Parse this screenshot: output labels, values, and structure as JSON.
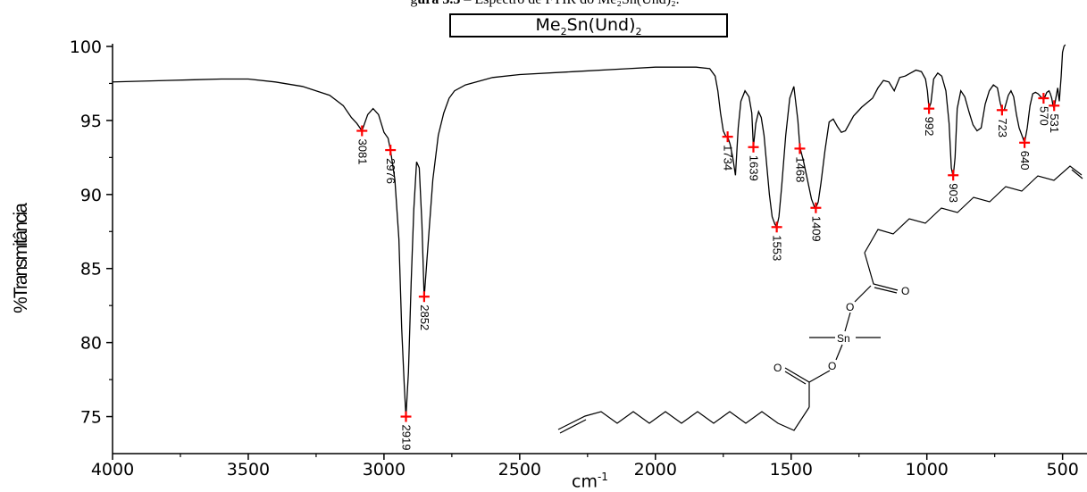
{
  "caption": {
    "prefix": "g",
    "bold": "ura 3.3",
    "rest": " – Espectro de FTIR do Me₂Sn(Und)₂."
  },
  "chart_data": {
    "type": "line",
    "title": {
      "base": "Me",
      "sub1": "2",
      "mid": "Sn(Und)",
      "sub2": "2"
    },
    "xlabel": {
      "base": "cm",
      "sup": "-1"
    },
    "ylabel": "%Transmitância",
    "xlim": [
      4000,
      410
    ],
    "ylim": [
      72.5,
      100
    ],
    "xticks": [
      "4000",
      "3500",
      "3000",
      "2500",
      "2000",
      "1500",
      "1000",
      "500"
    ],
    "xtick_values": [
      4000,
      3500,
      3000,
      2500,
      2000,
      1500,
      1000,
      500
    ],
    "yticks": [
      "100",
      "95",
      "90",
      "85",
      "80",
      "75"
    ],
    "ytick_values": [
      100,
      95,
      90,
      85,
      80,
      75
    ],
    "series": [
      {
        "x": [
          4000,
          3800,
          3700,
          3600,
          3500,
          3400,
          3300,
          3250,
          3200,
          3150,
          3120,
          3100,
          3081,
          3060,
          3040,
          3020,
          3000,
          2985,
          2976,
          2960,
          2945,
          2935,
          2925,
          2919,
          2910,
          2900,
          2890,
          2880,
          2870,
          2860,
          2852,
          2840,
          2820,
          2800,
          2780,
          2760,
          2740,
          2700,
          2600,
          2500,
          2300,
          2100,
          2000,
          1900,
          1850,
          1800,
          1780,
          1770,
          1760,
          1750,
          1740,
          1734,
          1725,
          1715,
          1705,
          1695,
          1685,
          1670,
          1655,
          1645,
          1639,
          1630,
          1620,
          1610,
          1600,
          1590,
          1580,
          1570,
          1560,
          1553,
          1545,
          1535,
          1520,
          1505,
          1490,
          1475,
          1468,
          1455,
          1440,
          1425,
          1415,
          1409,
          1400,
          1390,
          1375,
          1360,
          1345,
          1330,
          1315,
          1300,
          1285,
          1270,
          1255,
          1240,
          1220,
          1200,
          1180,
          1160,
          1140,
          1120,
          1100,
          1080,
          1060,
          1040,
          1020,
          1005,
          998,
          992,
          985,
          975,
          960,
          945,
          930,
          918,
          910,
          903,
          896,
          888,
          875,
          860,
          845,
          830,
          815,
          800,
          785,
          770,
          755,
          740,
          730,
          723,
          715,
          700,
          690,
          680,
          670,
          660,
          650,
          640,
          630,
          620,
          610,
          600,
          590,
          580,
          575,
          570,
          565,
          558,
          550,
          545,
          540,
          535,
          531,
          525,
          518,
          512,
          505,
          500,
          495,
          490
        ],
        "y": [
          97.6,
          97.7,
          97.75,
          97.8,
          97.8,
          97.6,
          97.3,
          97.0,
          96.7,
          96.0,
          95.2,
          94.8,
          94.3,
          95.4,
          95.8,
          95.4,
          94.2,
          93.8,
          93.0,
          91.0,
          87.0,
          81.0,
          77.0,
          75.0,
          78.0,
          84.0,
          89.0,
          92.2,
          91.8,
          88.0,
          83.0,
          86.0,
          91.0,
          94.0,
          95.5,
          96.5,
          97.0,
          97.4,
          97.9,
          98.1,
          98.3,
          98.5,
          98.6,
          98.6,
          98.6,
          98.5,
          98.0,
          97.0,
          95.5,
          94.3,
          93.9,
          93.9,
          93.4,
          92.5,
          91.3,
          94.5,
          96.3,
          97.0,
          96.6,
          95.5,
          93.2,
          94.8,
          95.6,
          95.2,
          94.0,
          92.0,
          90.0,
          88.5,
          88.0,
          87.8,
          88.5,
          90.5,
          94.0,
          96.5,
          97.3,
          95.0,
          93.2,
          92.3,
          91.0,
          89.7,
          89.2,
          89.1,
          89.5,
          90.8,
          93.0,
          94.9,
          95.1,
          94.6,
          94.2,
          94.3,
          94.8,
          95.3,
          95.6,
          95.9,
          96.2,
          96.5,
          97.2,
          97.7,
          97.6,
          97.0,
          97.9,
          98.0,
          98.2,
          98.4,
          98.3,
          97.8,
          97.0,
          95.8,
          96.2,
          97.8,
          98.2,
          98.0,
          97.0,
          94.8,
          91.8,
          91.2,
          92.5,
          95.8,
          97.0,
          96.6,
          95.6,
          94.7,
          94.3,
          94.5,
          96.1,
          97.0,
          97.4,
          97.2,
          96.2,
          95.7,
          95.7,
          96.7,
          97.0,
          96.6,
          95.4,
          94.5,
          94.0,
          93.5,
          94.5,
          96.0,
          96.8,
          96.9,
          96.8,
          96.6,
          96.5,
          96.4,
          96.6,
          96.9,
          97.0,
          96.8,
          96.5,
          96.0,
          95.8,
          96.5,
          97.2,
          96.3,
          98.0,
          99.6,
          100.0,
          100.2
        ]
      }
    ],
    "peaks": [
      {
        "x": 3081,
        "y": 94.3,
        "label": "3081"
      },
      {
        "x": 2976,
        "y": 93.0,
        "label": "2976"
      },
      {
        "x": 2919,
        "y": 75.0,
        "label": "2919"
      },
      {
        "x": 2852,
        "y": 83.1,
        "label": "2852"
      },
      {
        "x": 1734,
        "y": 93.9,
        "label": "1734"
      },
      {
        "x": 1639,
        "y": 93.2,
        "label": "1639"
      },
      {
        "x": 1553,
        "y": 87.8,
        "label": "1553"
      },
      {
        "x": 1468,
        "y": 93.1,
        "label": "1468"
      },
      {
        "x": 1409,
        "y": 89.1,
        "label": "1409"
      },
      {
        "x": 992,
        "y": 95.8,
        "label": "992"
      },
      {
        "x": 903,
        "y": 91.3,
        "label": "903"
      },
      {
        "x": 723,
        "y": 95.7,
        "label": "723"
      },
      {
        "x": 640,
        "y": 93.5,
        "label": "640"
      },
      {
        "x": 570,
        "y": 96.5,
        "label": "570"
      },
      {
        "x": 531,
        "y": 96.0,
        "label": "531"
      }
    ],
    "grid": false,
    "colors": {
      "line": "#000000",
      "peak_marker": "#ff0000"
    }
  },
  "structure": {
    "atoms": [
      {
        "symbol": "O",
        "name": "carbonyl-oxygen-upper"
      },
      {
        "symbol": "O",
        "name": "ester-oxygen-upper"
      },
      {
        "symbol": "Sn",
        "name": "tin-atom"
      },
      {
        "symbol": "O",
        "name": "ester-oxygen-lower"
      },
      {
        "symbol": "O",
        "name": "carbonyl-oxygen-lower"
      }
    ]
  }
}
